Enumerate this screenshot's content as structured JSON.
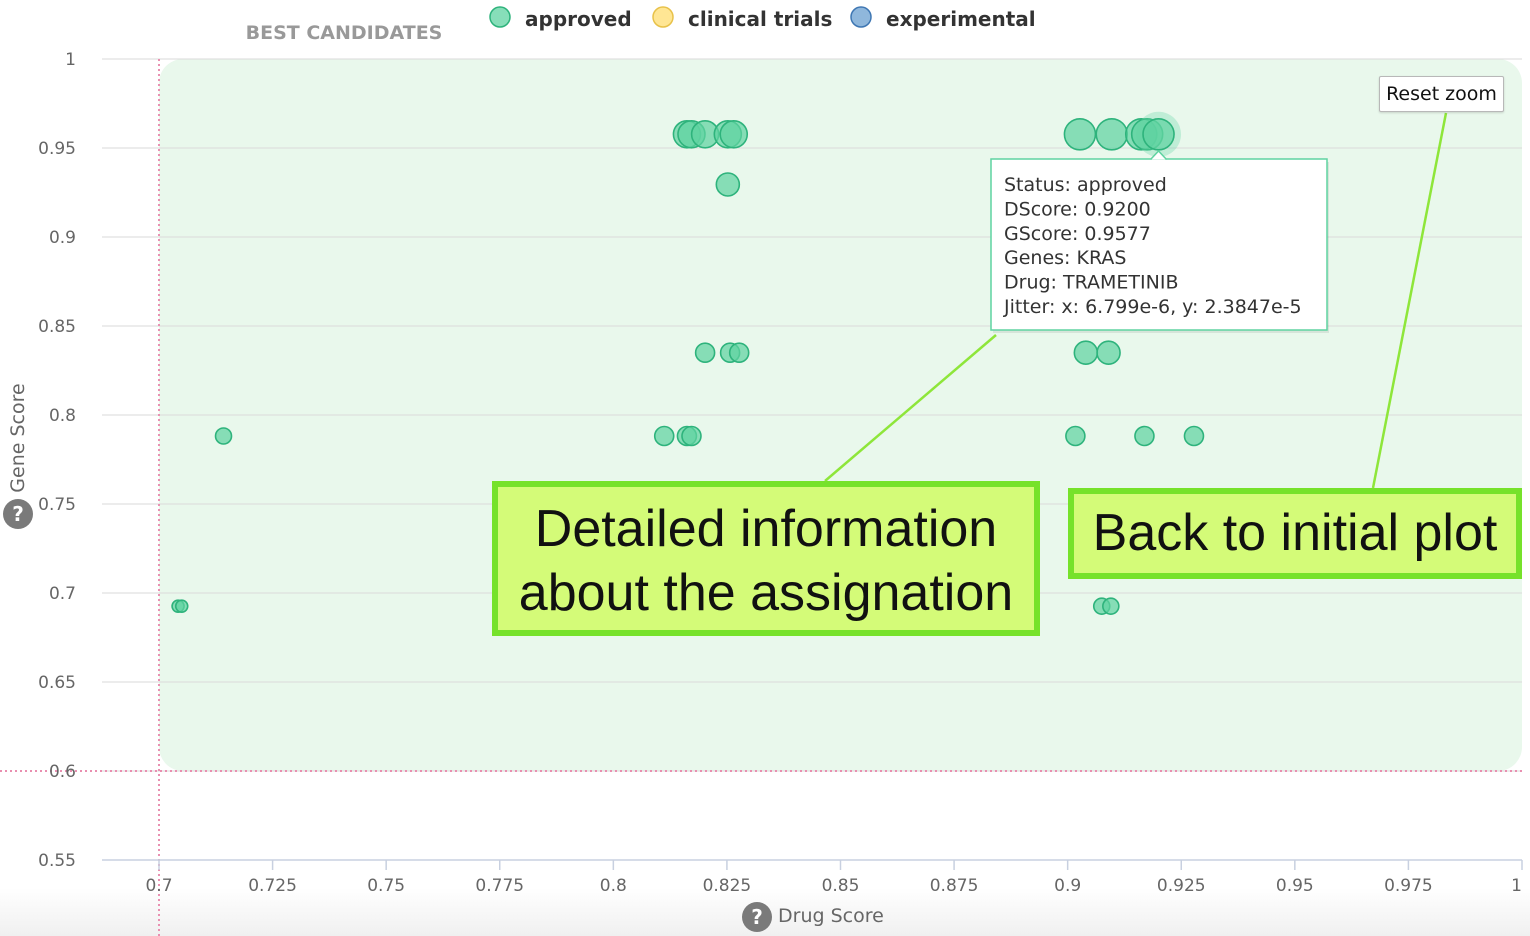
{
  "chart_data": {
    "type": "scatter",
    "title": "BEST CANDIDATES",
    "xlabel": "Drug Score",
    "ylabel": "Gene Score",
    "xlim": [
      0.7,
      1
    ],
    "ylim": [
      0.55,
      1
    ],
    "x_ticks": [
      "0.7",
      "0.725",
      "0.75",
      "0.775",
      "0.8",
      "0.825",
      "0.85",
      "0.875",
      "0.9",
      "0.925",
      "0.95",
      "0.975",
      "1"
    ],
    "y_ticks": [
      "0.55",
      "0.6",
      "0.65",
      "0.7",
      "0.75",
      "0.8",
      "0.85",
      "0.9",
      "0.95",
      "1"
    ],
    "threshold_x": 0.7,
    "threshold_y": 0.6,
    "best_region": {
      "x": [
        0.7,
        1
      ],
      "y": [
        0.6,
        1
      ]
    },
    "legend_position": "top",
    "series": [
      {
        "name": "approved",
        "color": "#5fd3a1",
        "points": [
          {
            "x": 0.8162,
            "y": 0.9577,
            "size": "large"
          },
          {
            "x": 0.8172,
            "y": 0.9577,
            "size": "large"
          },
          {
            "x": 0.8202,
            "y": 0.9577,
            "size": "large"
          },
          {
            "x": 0.8252,
            "y": 0.9577,
            "size": "large"
          },
          {
            "x": 0.8265,
            "y": 0.9577,
            "size": "large"
          },
          {
            "x": 0.8252,
            "y": 0.9295,
            "size": "medium"
          },
          {
            "x": 0.9027,
            "y": 0.9577,
            "size": "xlarge"
          },
          {
            "x": 0.9097,
            "y": 0.9577,
            "size": "xlarge"
          },
          {
            "x": 0.9162,
            "y": 0.9577,
            "size": "xlarge"
          },
          {
            "x": 0.9175,
            "y": 0.9577,
            "size": "xlarge"
          },
          {
            "x": 0.92,
            "y": 0.9577,
            "size": "xlarge",
            "highlighted": true
          },
          {
            "x": 0.8202,
            "y": 0.835,
            "size": "small"
          },
          {
            "x": 0.8257,
            "y": 0.835,
            "size": "small"
          },
          {
            "x": 0.8277,
            "y": 0.835,
            "size": "small"
          },
          {
            "x": 0.904,
            "y": 0.835,
            "size": "medium"
          },
          {
            "x": 0.909,
            "y": 0.835,
            "size": "medium"
          },
          {
            "x": 0.7142,
            "y": 0.7882,
            "size": "tiny"
          },
          {
            "x": 0.8112,
            "y": 0.7882,
            "size": "small"
          },
          {
            "x": 0.8162,
            "y": 0.7882,
            "size": "small"
          },
          {
            "x": 0.8172,
            "y": 0.7882,
            "size": "small"
          },
          {
            "x": 0.9017,
            "y": 0.7882,
            "size": "small"
          },
          {
            "x": 0.9169,
            "y": 0.7882,
            "size": "small"
          },
          {
            "x": 0.9278,
            "y": 0.7882,
            "size": "small"
          },
          {
            "x": 0.7042,
            "y": 0.6926,
            "size": "micro"
          },
          {
            "x": 0.705,
            "y": 0.6926,
            "size": "micro"
          },
          {
            "x": 0.9075,
            "y": 0.6926,
            "size": "tiny"
          },
          {
            "x": 0.9095,
            "y": 0.6926,
            "size": "tiny"
          }
        ]
      },
      {
        "name": "clinical trials",
        "color": "#ffdd70",
        "points": []
      },
      {
        "name": "experimental",
        "color": "#6a9fd0",
        "points": []
      }
    ],
    "tooltip": {
      "lines": [
        "Status: approved",
        "DScore: 0.9200",
        "GScore: 0.9577",
        "Genes: KRAS",
        "Drug: TRAMETINIB",
        "Jitter: x: 6.799e-6, y: 2.3847e-5"
      ]
    }
  },
  "reset_zoom_label": "Reset zoom",
  "annotations": {
    "info_line1": "Detailed information",
    "info_line2": "about the assignation",
    "back": "Back to initial plot"
  },
  "help_icon": "question-circle-icon",
  "colors": {
    "approved": "#5fd3a1",
    "approved_stroke": "#2eb37c",
    "region_fill": "#e9f8ec",
    "threshold": "#e98fb0",
    "callout_fill": "#d4fb78",
    "callout_border": "#76e22a"
  }
}
